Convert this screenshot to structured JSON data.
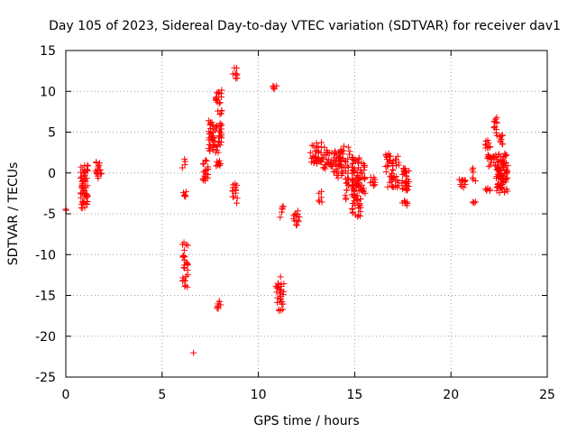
{
  "chart_data": {
    "type": "scatter",
    "title": "Day 105 of 2023, Sidereal Day-to-day VTEC variation (SDTVAR) for receiver dav1",
    "xlabel": "GPS time / hours",
    "ylabel": "SDTVAR / TECUs",
    "xlim": [
      0,
      25
    ],
    "ylim": [
      -25,
      15
    ],
    "xticks": [
      "0",
      "5",
      "10",
      "15",
      "20",
      "25"
    ],
    "xtick_values": [
      0,
      5,
      10,
      15,
      20,
      25
    ],
    "yticks": [
      "-25",
      "-20",
      "-15",
      "-10",
      "-5",
      "0",
      "5",
      "10",
      "15"
    ],
    "ytick_values": [
      -25,
      -20,
      -15,
      -10,
      -5,
      0,
      5,
      10,
      15
    ],
    "grid": true,
    "marker": "+",
    "color": "#ff0000",
    "clusters": [
      {
        "x0": 0.0,
        "x1": 0.05,
        "y0": -4.6,
        "y1": -4.4,
        "n": 2
      },
      {
        "x0": 0.75,
        "x1": 1.15,
        "y0": -4.4,
        "y1": 1.0,
        "n": 60
      },
      {
        "x0": 1.5,
        "x1": 1.85,
        "y0": -0.8,
        "y1": 1.4,
        "n": 18
      },
      {
        "x0": 6.05,
        "x1": 6.2,
        "y0": 0.6,
        "y1": 1.8,
        "n": 4
      },
      {
        "x0": 6.05,
        "x1": 6.3,
        "y0": -2.9,
        "y1": -2.3,
        "n": 6
      },
      {
        "x0": 6.05,
        "x1": 6.35,
        "y0": -14.0,
        "y1": -7.8,
        "n": 28
      },
      {
        "x0": 6.6,
        "x1": 6.65,
        "y0": -22.2,
        "y1": -22.0,
        "n": 1
      },
      {
        "x0": 7.1,
        "x1": 7.4,
        "y0": -1.0,
        "y1": 2.0,
        "n": 20
      },
      {
        "x0": 7.4,
        "x1": 8.1,
        "y0": 2.5,
        "y1": 6.5,
        "n": 60
      },
      {
        "x0": 7.8,
        "x1": 8.1,
        "y0": 7.0,
        "y1": 10.5,
        "n": 20
      },
      {
        "x0": 7.8,
        "x1": 8.05,
        "y0": 0.7,
        "y1": 1.6,
        "n": 8
      },
      {
        "x0": 7.8,
        "x1": 8.05,
        "y0": -16.6,
        "y1": -15.6,
        "n": 8
      },
      {
        "x0": 8.65,
        "x1": 8.9,
        "y0": 11.2,
        "y1": 13.3,
        "n": 8
      },
      {
        "x0": 8.65,
        "x1": 8.95,
        "y0": -3.7,
        "y1": -0.8,
        "n": 14
      },
      {
        "x0": 10.75,
        "x1": 10.95,
        "y0": 9.7,
        "y1": 10.8,
        "n": 5
      },
      {
        "x0": 10.9,
        "x1": 11.35,
        "y0": -16.9,
        "y1": -12.7,
        "n": 30
      },
      {
        "x0": 11.1,
        "x1": 11.3,
        "y0": -5.6,
        "y1": -3.2,
        "n": 6
      },
      {
        "x0": 11.8,
        "x1": 12.15,
        "y0": -6.9,
        "y1": -3.8,
        "n": 14
      },
      {
        "x0": 12.7,
        "x1": 13.3,
        "y0": 1.0,
        "y1": 3.8,
        "n": 36
      },
      {
        "x0": 13.1,
        "x1": 13.3,
        "y0": -3.6,
        "y1": -1.8,
        "n": 6
      },
      {
        "x0": 13.3,
        "x1": 13.9,
        "y0": 0.5,
        "y1": 3.3,
        "n": 24
      },
      {
        "x0": 13.9,
        "x1": 14.4,
        "y0": -1.0,
        "y1": 2.8,
        "n": 30
      },
      {
        "x0": 14.2,
        "x1": 14.8,
        "y0": 0.5,
        "y1": 3.3,
        "n": 24
      },
      {
        "x0": 14.5,
        "x1": 14.8,
        "y0": -3.3,
        "y1": 0.8,
        "n": 14
      },
      {
        "x0": 14.85,
        "x1": 15.35,
        "y0": -5.5,
        "y1": 2.0,
        "n": 90
      },
      {
        "x0": 15.35,
        "x1": 15.55,
        "y0": -2.5,
        "y1": 1.3,
        "n": 18
      },
      {
        "x0": 15.8,
        "x1": 16.1,
        "y0": -1.8,
        "y1": -0.5,
        "n": 10
      },
      {
        "x0": 16.6,
        "x1": 17.3,
        "y0": -1.8,
        "y1": 2.4,
        "n": 50
      },
      {
        "x0": 17.4,
        "x1": 17.85,
        "y0": -2.3,
        "y1": 0.6,
        "n": 30
      },
      {
        "x0": 17.45,
        "x1": 17.75,
        "y0": -4.0,
        "y1": -3.3,
        "n": 8
      },
      {
        "x0": 20.4,
        "x1": 20.75,
        "y0": -1.8,
        "y1": -0.8,
        "n": 12
      },
      {
        "x0": 21.1,
        "x1": 21.3,
        "y0": -1.0,
        "y1": 0.6,
        "n": 6
      },
      {
        "x0": 21.1,
        "x1": 21.3,
        "y0": -3.8,
        "y1": -3.3,
        "n": 4
      },
      {
        "x0": 21.75,
        "x1": 22.05,
        "y0": 3.0,
        "y1": 4.0,
        "n": 10
      },
      {
        "x0": 21.75,
        "x1": 22.05,
        "y0": -2.3,
        "y1": -1.8,
        "n": 6
      },
      {
        "x0": 21.9,
        "x1": 22.35,
        "y0": 0.5,
        "y1": 2.5,
        "n": 20
      },
      {
        "x0": 22.15,
        "x1": 22.4,
        "y0": 4.5,
        "y1": 7.0,
        "n": 12
      },
      {
        "x0": 22.35,
        "x1": 22.95,
        "y0": -2.5,
        "y1": 2.5,
        "n": 90
      },
      {
        "x0": 22.5,
        "x1": 22.75,
        "y0": 3.5,
        "y1": 5.0,
        "n": 10
      }
    ]
  }
}
